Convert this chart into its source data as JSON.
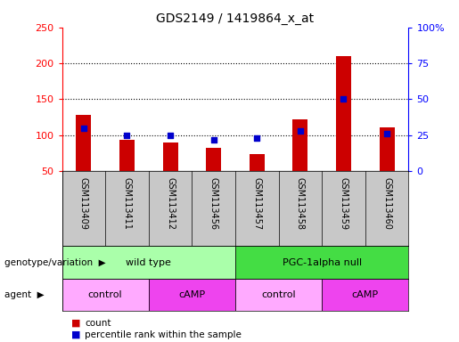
{
  "title": "GDS2149 / 1419864_x_at",
  "samples": [
    "GSM113409",
    "GSM113411",
    "GSM113412",
    "GSM113456",
    "GSM113457",
    "GSM113458",
    "GSM113459",
    "GSM113460"
  ],
  "count_values": [
    128,
    93,
    90,
    82,
    74,
    122,
    210,
    111
  ],
  "percentile_values": [
    30,
    25,
    25,
    22,
    23,
    28,
    50,
    26
  ],
  "ylim_left": [
    50,
    250
  ],
  "ylim_right": [
    0,
    100
  ],
  "yticks_left": [
    50,
    100,
    150,
    200,
    250
  ],
  "yticks_right": [
    0,
    25,
    50,
    75,
    100
  ],
  "ytick_labels_left": [
    "50",
    "100",
    "150",
    "200",
    "250"
  ],
  "ytick_labels_right": [
    "0",
    "25",
    "50",
    "75",
    "100%"
  ],
  "bar_color": "#cc0000",
  "dot_color": "#0000cc",
  "genotype_groups": [
    {
      "label": "wild type",
      "start": 0,
      "end": 4,
      "color": "#aaffaa"
    },
    {
      "label": "PGC-1alpha null",
      "start": 4,
      "end": 8,
      "color": "#44dd44"
    }
  ],
  "agent_groups": [
    {
      "label": "control",
      "start": 0,
      "end": 2,
      "color": "#ffaaff"
    },
    {
      "label": "cAMP",
      "start": 2,
      "end": 4,
      "color": "#ee44ee"
    },
    {
      "label": "control",
      "start": 4,
      "end": 6,
      "color": "#ffaaff"
    },
    {
      "label": "cAMP",
      "start": 6,
      "end": 8,
      "color": "#ee44ee"
    }
  ],
  "legend_count_label": "count",
  "legend_pct_label": "percentile rank within the sample",
  "genotype_label": "genotype/variation",
  "agent_label": "agent",
  "bar_width": 0.35
}
